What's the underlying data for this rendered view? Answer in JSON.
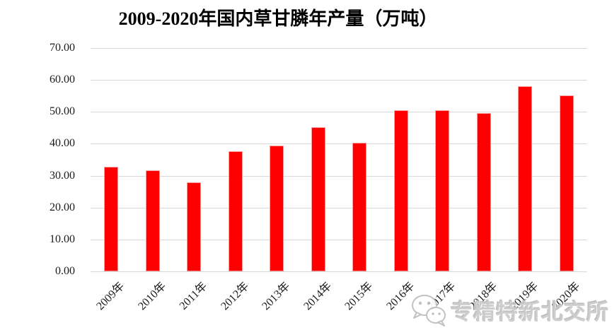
{
  "page": {
    "background": "#ffffff"
  },
  "chart_data": {
    "type": "bar",
    "title": "2009-2020年国内草甘膦年产量（万吨）",
    "categories": [
      "2009年",
      "2010年",
      "2011年",
      "2012年",
      "2013年",
      "2014年",
      "2015年",
      "2016年",
      "2017年",
      "2018年",
      "2019年",
      "2020年"
    ],
    "values": [
      32.8,
      31.7,
      28.0,
      37.6,
      39.4,
      45.1,
      40.3,
      50.5,
      50.5,
      49.6,
      58.1,
      55.2
    ],
    "xlabel": "",
    "ylabel": "",
    "ylim": [
      0,
      70
    ],
    "ytick_step": 10,
    "ytick_labels": [
      "70.00",
      "60.00",
      "50.00",
      "40.00",
      "30.00",
      "20.00",
      "10.00",
      "0.00"
    ],
    "grid": true,
    "legend": "none",
    "bar_color": "#ff0000",
    "bar_edge_color": "#ff9b9b",
    "gridline_color": "#d9d9d9",
    "label_color": "#1a1a1a"
  },
  "watermark": {
    "icon": "wechat-icon",
    "text": "专精特新北交所",
    "text_color": "#c9c9c9"
  }
}
